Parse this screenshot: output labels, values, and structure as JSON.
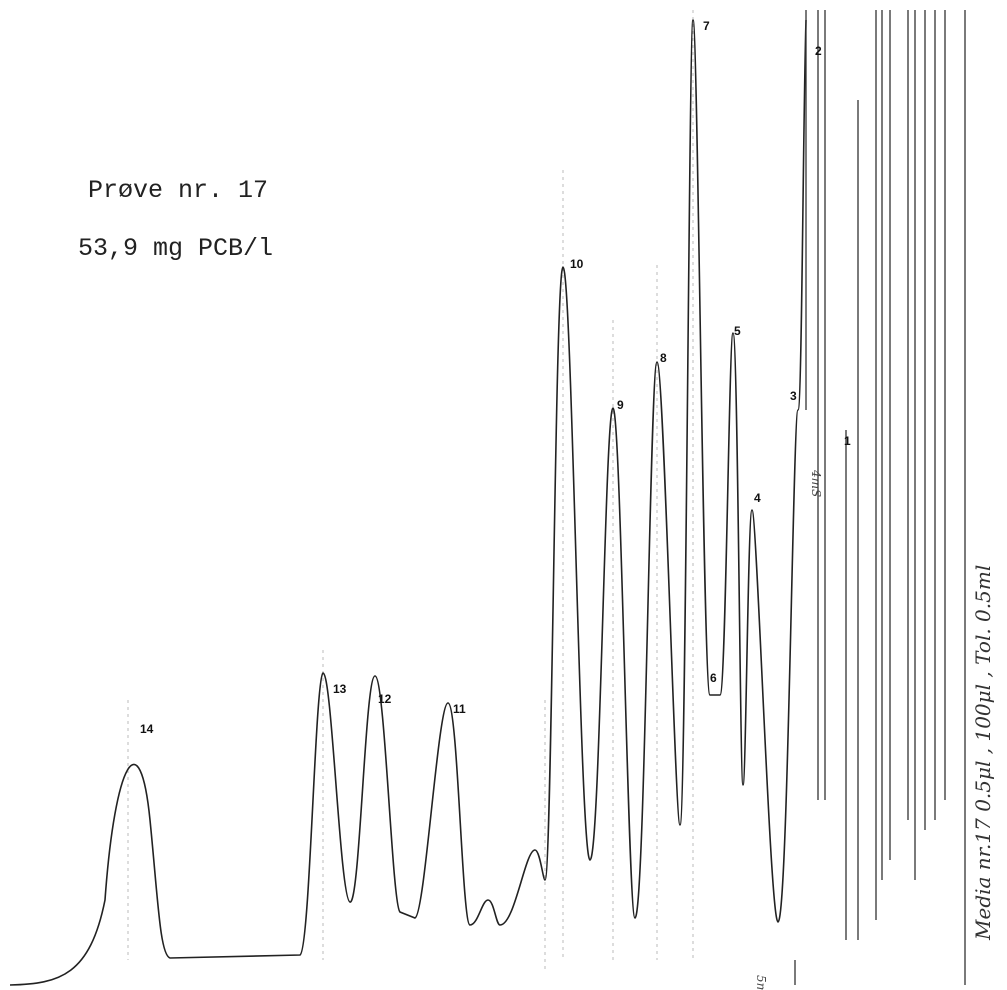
{
  "sample": {
    "line1": "Prøve nr. 17",
    "line2": "53,9 mg PCB/l"
  },
  "peaks": [
    "1",
    "2",
    "3",
    "4",
    "5",
    "6",
    "7",
    "8",
    "9",
    "10",
    "11",
    "12",
    "13",
    "14"
  ],
  "notes": {
    "side": "Media nr.17   0.5μl , 100μl , Tol. 0.5ml",
    "scale": "5mV",
    "time": "4mS"
  }
}
